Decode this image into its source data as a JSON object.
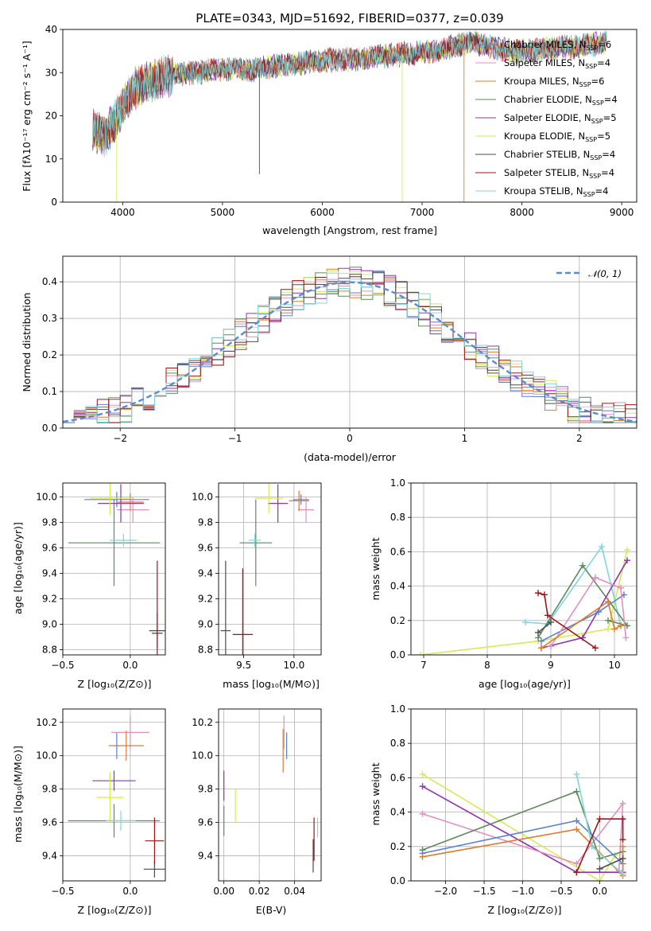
{
  "colors": {
    "chabrier_miles": "#5b80d4",
    "salpeter_miles": "#e48fc0",
    "kroupa_miles": "#e07b2a",
    "chabrier_elodie": "#5d8a5f",
    "salpeter_elodie": "#8f33b0",
    "kroupa_elodie": "#d8ea52",
    "chabrier_stelib": "#4d4d4d",
    "salpeter_stelib": "#a01616",
    "kroupa_stelib": "#7fd6dc",
    "normal_curve": "#5b8bd0"
  },
  "chart_data": [
    {
      "id": "spectrum",
      "type": "line",
      "title": "PLATE=0343, MJD=51692, FIBERID=0377, z=0.039",
      "xlabel": "wavelength [Angstrom, rest frame]",
      "ylabel": "Flux [fλ10⁻¹⁷ erg cm⁻² s⁻¹ A⁻¹]",
      "xlim": [
        3400,
        9150
      ],
      "ylim": [
        0,
        40
      ],
      "xticks": [
        "4000",
        "5000",
        "6000",
        "7000",
        "8000",
        "9000"
      ],
      "yticks": [
        "0",
        "10",
        "20",
        "30",
        "40"
      ],
      "legend_position": "top-right",
      "series": [
        {
          "key": "chabrier_miles",
          "name": "Chabrier MILES, N",
          "sub": "SSP",
          "suffix": "=6"
        },
        {
          "key": "salpeter_miles",
          "name": "Salpeter MILES, N",
          "sub": "SSP",
          "suffix": "=4"
        },
        {
          "key": "kroupa_miles",
          "name": "Kroupa MILES, N",
          "sub": "SSP",
          "suffix": "=6"
        },
        {
          "key": "chabrier_elodie",
          "name": "Chabrier ELODIE, N",
          "sub": "SSP",
          "suffix": "=4"
        },
        {
          "key": "salpeter_elodie",
          "name": "Salpeter ELODIE, N",
          "sub": "SSP",
          "suffix": "=5"
        },
        {
          "key": "kroupa_elodie",
          "name": "Kroupa ELODIE, N",
          "sub": "SSP",
          "suffix": "=5"
        },
        {
          "key": "chabrier_stelib",
          "name": "Chabrier STELIB, N",
          "sub": "SSP",
          "suffix": "=4"
        },
        {
          "key": "salpeter_stelib",
          "name": "Salpeter STELIB, N",
          "sub": "SSP",
          "suffix": "=4"
        },
        {
          "key": "kroupa_stelib",
          "name": "Kroupa STELIB, N",
          "sub": "SSP",
          "suffix": "=4"
        }
      ],
      "continuum": [
        [
          3700,
          17
        ],
        [
          3800,
          15
        ],
        [
          3900,
          18
        ],
        [
          4000,
          22
        ],
        [
          4100,
          26
        ],
        [
          4300,
          28
        ],
        [
          4500,
          29.5
        ],
        [
          4700,
          30
        ],
        [
          4900,
          30.5
        ],
        [
          5100,
          31
        ],
        [
          5300,
          30.5
        ],
        [
          5500,
          31.5
        ],
        [
          5700,
          32
        ],
        [
          5900,
          32.5
        ],
        [
          6100,
          33
        ],
        [
          6300,
          33
        ],
        [
          6500,
          33.5
        ],
        [
          6700,
          34
        ],
        [
          6900,
          34.5
        ],
        [
          7100,
          35
        ],
        [
          7300,
          36
        ],
        [
          7500,
          37
        ],
        [
          7700,
          36
        ],
        [
          7900,
          35
        ],
        [
          8100,
          35
        ],
        [
          8300,
          35.5
        ],
        [
          8500,
          36
        ],
        [
          8700,
          36.5
        ],
        [
          8850,
          37
        ]
      ],
      "spikes": [
        {
          "x": 3940,
          "y": 0,
          "key": "kroupa_elodie"
        },
        {
          "x": 5370,
          "y": 6.5,
          "key": "chabrier_stelib"
        },
        {
          "x": 6560,
          "y": 36.5,
          "key": "chabrier_stelib"
        },
        {
          "x": 6800,
          "y": 0,
          "key": "kroupa_elodie"
        },
        {
          "x": 7420,
          "y": 0,
          "key": "kroupa_miles"
        }
      ]
    },
    {
      "id": "residuals",
      "type": "bar",
      "xlabel": "(data-model)/error",
      "ylabel": "Normed distribution",
      "xlim": [
        -2.5,
        2.5
      ],
      "ylim": [
        0,
        0.47
      ],
      "xticks": [
        "−2",
        "−1",
        "0",
        "1",
        "2"
      ],
      "yticks": [
        "0.0",
        "0.1",
        "0.2",
        "0.3",
        "0.4"
      ],
      "bin_width": 0.1,
      "curve_label": "𝒩(0, 1)",
      "legend_position": "top-right"
    },
    {
      "id": "z_age",
      "type": "scatter",
      "xlabel": "Z [log₁₀(Z/Z⊙)]",
      "ylabel": "age  [log₁₀(age/yr)]",
      "xlim": [
        -0.5,
        0.26
      ],
      "ylim": [
        8.76,
        10.11
      ],
      "xticks": [
        "−0.5",
        "0.0"
      ],
      "yticks": [
        "8.8",
        "9.0",
        "9.2",
        "9.4",
        "9.6",
        "9.8",
        "10.0"
      ],
      "points": [
        {
          "key": "chabrier_miles",
          "x": -0.1,
          "y": 9.98,
          "xerr": 0.24,
          "yerr": 0.06
        },
        {
          "key": "salpeter_miles",
          "x": 0.02,
          "y": 9.9,
          "xerr": 0.12,
          "yerr": 0.1
        },
        {
          "key": "kroupa_miles",
          "x": 0.0,
          "y": 9.96,
          "xerr": 0.1,
          "yerr": 0.07
        },
        {
          "key": "chabrier_elodie",
          "x": -0.12,
          "y": 9.64,
          "xerr": 0.34,
          "yerr": 0.34
        },
        {
          "key": "salpeter_elodie",
          "x": -0.07,
          "y": 9.95,
          "xerr": 0.17,
          "yerr": 0.15
        },
        {
          "key": "kroupa_elodie",
          "x": -0.15,
          "y": 9.99,
          "xerr": 0.15,
          "yerr": 0.13
        },
        {
          "key": "chabrier_stelib",
          "x": 0.2,
          "y": 8.95,
          "xerr": 0.06,
          "yerr": 0.14
        },
        {
          "key": "salpeter_stelib",
          "x": 0.2,
          "y": 8.93,
          "xerr": 0.04,
          "yerr": 0.57
        },
        {
          "key": "kroupa_stelib",
          "x": -0.05,
          "y": 9.66,
          "xerr": 0.1,
          "yerr": 0.05
        }
      ]
    },
    {
      "id": "mass_age",
      "type": "scatter",
      "xlabel": "mass [log₁₀(M/M⊙)]",
      "ylabel": "",
      "xlim": [
        9.25,
        10.27
      ],
      "ylim": [
        8.76,
        10.11
      ],
      "xticks": [
        "9.5",
        "10.0"
      ],
      "yticks": [
        "8.8",
        "9.0",
        "9.2",
        "9.4",
        "9.6",
        "9.8",
        "10.0"
      ],
      "points": [
        {
          "key": "chabrier_miles",
          "x": 10.07,
          "y": 9.98,
          "xerr": 0.08,
          "yerr": 0.04
        },
        {
          "key": "salpeter_miles",
          "x": 10.12,
          "y": 9.9,
          "xerr": 0.08,
          "yerr": 0.1
        },
        {
          "key": "kroupa_miles",
          "x": 10.05,
          "y": 9.97,
          "xerr": 0.1,
          "yerr": 0.08
        },
        {
          "key": "chabrier_elodie",
          "x": 9.62,
          "y": 9.64,
          "xerr": 0.16,
          "yerr": 0.34
        },
        {
          "key": "salpeter_elodie",
          "x": 9.84,
          "y": 9.95,
          "xerr": 0.1,
          "yerr": 0.15
        },
        {
          "key": "kroupa_elodie",
          "x": 9.75,
          "y": 9.99,
          "xerr": 0.14,
          "yerr": 0.12
        },
        {
          "key": "chabrier_stelib",
          "x": 9.32,
          "y": 8.95,
          "xerr": 0.05,
          "yerr": 0.55
        },
        {
          "key": "salpeter_stelib",
          "x": 9.49,
          "y": 8.92,
          "xerr": 0.1,
          "yerr": 0.52
        },
        {
          "key": "kroupa_stelib",
          "x": 9.61,
          "y": 9.66,
          "xerr": 0.06,
          "yerr": 0.05
        }
      ]
    },
    {
      "id": "age_weight",
      "type": "line",
      "xlabel": "age  [log₁₀(age/yr)]",
      "ylabel": "mass weight",
      "xlim": [
        6.8,
        10.35
      ],
      "ylim": [
        0,
        1
      ],
      "xticks": [
        "7",
        "8",
        "9",
        "10"
      ],
      "yticks": [
        "0.0",
        "0.2",
        "0.4",
        "0.6",
        "0.8",
        "1.0"
      ],
      "series": [
        {
          "key": "kroupa_elodie",
          "x": [
            6.95,
            8.8,
            9.9,
            10.2
          ],
          "y": [
            0.0,
            0.08,
            0.15,
            0.61
          ]
        },
        {
          "key": "kroupa_stelib",
          "x": [
            8.6,
            8.95,
            9.8,
            10.1
          ],
          "y": [
            0.19,
            0.18,
            0.63,
            0.17
          ]
        },
        {
          "key": "chabrier_elodie",
          "x": [
            8.8,
            9.5,
            10.2,
            9.9
          ],
          "y": [
            0.1,
            0.52,
            0.17,
            0.2
          ]
        },
        {
          "key": "salpeter_elodie",
          "x": [
            8.85,
            9.5,
            10.2
          ],
          "y": [
            0.04,
            0.1,
            0.55
          ]
        },
        {
          "key": "chabrier_miles",
          "x": [
            8.85,
            9.75,
            10.15
          ],
          "y": [
            0.08,
            0.25,
            0.35
          ]
        },
        {
          "key": "salpeter_miles",
          "x": [
            9.0,
            9.7,
            10.1,
            10.18
          ],
          "y": [
            0.05,
            0.45,
            0.39,
            0.1
          ]
        },
        {
          "key": "kroupa_miles",
          "x": [
            8.85,
            9.9,
            10.0,
            10.1
          ],
          "y": [
            0.04,
            0.31,
            0.15,
            0.17
          ]
        },
        {
          "key": "salpeter_stelib",
          "x": [
            8.8,
            8.9,
            8.95,
            9.7
          ],
          "y": [
            0.36,
            0.35,
            0.23,
            0.04
          ]
        },
        {
          "key": "chabrier_stelib",
          "x": [
            8.8,
            9.0
          ],
          "y": [
            0.13,
            0.19
          ]
        }
      ]
    },
    {
      "id": "z_mass",
      "type": "scatter",
      "xlabel": "Z [log₁₀(Z/Z⊙)]",
      "ylabel": "mass [log₁₀(M/M⊙)]",
      "xlim": [
        -0.5,
        0.26
      ],
      "ylim": [
        9.25,
        10.28
      ],
      "xticks": [
        "−0.5",
        "0.0"
      ],
      "yticks": [
        "9.4",
        "9.6",
        "9.8",
        "10.0",
        "10.2"
      ],
      "points": [
        {
          "key": "chabrier_miles",
          "x": -0.1,
          "y": 10.06,
          "xerr": 0.02,
          "yerr": 0.08
        },
        {
          "key": "salpeter_miles",
          "x": 0.0,
          "y": 10.14,
          "xerr": 0.14,
          "yerr": 0.1
        },
        {
          "key": "kroupa_miles",
          "x": -0.03,
          "y": 10.06,
          "xerr": 0.13,
          "yerr": 0.09
        },
        {
          "key": "chabrier_elodie",
          "x": -0.12,
          "y": 9.61,
          "xerr": 0.34,
          "yerr": 0.1
        },
        {
          "key": "salpeter_elodie",
          "x": -0.12,
          "y": 9.85,
          "xerr": 0.16,
          "yerr": 0.06
        },
        {
          "key": "kroupa_elodie",
          "x": -0.15,
          "y": 9.75,
          "xerr": 0.1,
          "yerr": 0.15
        },
        {
          "key": "chabrier_stelib",
          "x": 0.18,
          "y": 9.32,
          "xerr": 0.08,
          "yerr": 0.05
        },
        {
          "key": "salpeter_stelib",
          "x": 0.18,
          "y": 9.49,
          "xerr": 0.07,
          "yerr": 0.14
        },
        {
          "key": "kroupa_stelib",
          "x": -0.07,
          "y": 9.61,
          "xerr": 0.11,
          "yerr": 0.06
        }
      ]
    },
    {
      "id": "ebv_mass",
      "type": "scatter",
      "xlabel": "E(B-V)",
      "ylabel": "",
      "xlim": [
        -0.003,
        0.055
      ],
      "ylim": [
        9.25,
        10.28
      ],
      "xticks": [
        "0.00",
        "0.02",
        "0.04"
      ],
      "yticks": [
        "9.4",
        "9.6",
        "9.8",
        "10.0",
        "10.2"
      ],
      "points": [
        {
          "key": "chabrier_miles",
          "x": 0.0355,
          "y": 10.06,
          "yerr": 0.08
        },
        {
          "key": "salpeter_miles",
          "x": 0.034,
          "y": 10.14,
          "yerr": 0.1
        },
        {
          "key": "kroupa_miles",
          "x": 0.0335,
          "y": 10.03,
          "yerr": 0.13
        },
        {
          "key": "chabrier_elodie",
          "x": 0.0,
          "y": 9.61,
          "yerr": 0.09
        },
        {
          "key": "salpeter_elodie",
          "x": 0.0,
          "y": 9.82,
          "yerr": 0.09
        },
        {
          "key": "kroupa_elodie",
          "x": 0.0065,
          "y": 9.7,
          "yerr": 0.1
        },
        {
          "key": "chabrier_stelib",
          "x": 0.0505,
          "y": 9.4,
          "yerr": 0.1
        },
        {
          "key": "salpeter_stelib",
          "x": 0.051,
          "y": 9.5,
          "yerr": 0.13
        },
        {
          "key": "kroupa_stelib",
          "x": 0.053,
          "y": 9.57,
          "yerr": 0.06
        }
      ]
    },
    {
      "id": "z_weight",
      "type": "line",
      "xlabel": "Z [log₁₀(Z/Z⊙)]",
      "ylabel": "mass weight",
      "xlim": [
        -2.45,
        0.48
      ],
      "ylim": [
        0,
        1
      ],
      "xticks": [
        "−2.0",
        "−1.5",
        "−1.0",
        "−0.5",
        "0.0"
      ],
      "yticks": [
        "0.0",
        "0.2",
        "0.4",
        "0.6",
        "0.8",
        "1.0"
      ],
      "series": [
        {
          "key": "kroupa_elodie",
          "x": [
            -2.3,
            0.0,
            0.2
          ],
          "y": [
            0.62,
            0.0,
            0.15
          ]
        },
        {
          "key": "salpeter_elodie",
          "x": [
            -2.3,
            -0.3,
            0.3
          ],
          "y": [
            0.55,
            0.05,
            0.05
          ]
        },
        {
          "key": "salpeter_miles",
          "x": [
            -2.3,
            -0.3,
            0.3,
            0.25
          ],
          "y": [
            0.39,
            0.1,
            0.45,
            0.06
          ]
        },
        {
          "key": "chabrier_elodie",
          "x": [
            -2.3,
            -0.3,
            0.0,
            0.3
          ],
          "y": [
            0.18,
            0.52,
            0.13,
            0.17
          ]
        },
        {
          "key": "chabrier_miles",
          "x": [
            -2.3,
            -0.3,
            0.3
          ],
          "y": [
            0.16,
            0.35,
            0.1
          ]
        },
        {
          "key": "kroupa_miles",
          "x": [
            -2.3,
            -0.3,
            0.3,
            0.3
          ],
          "y": [
            0.14,
            0.3,
            0.03,
            0.2
          ]
        },
        {
          "key": "kroupa_stelib",
          "x": [
            -0.3,
            -0.1,
            0.3
          ],
          "y": [
            0.62,
            0.2,
            0.04
          ]
        },
        {
          "key": "salpeter_stelib",
          "x": [
            -0.3,
            0.0,
            0.3,
            0.3
          ],
          "y": [
            0.05,
            0.36,
            0.36,
            0.24
          ]
        },
        {
          "key": "chabrier_stelib",
          "x": [
            0.0,
            0.3
          ],
          "y": [
            0.07,
            0.13
          ]
        }
      ]
    }
  ]
}
